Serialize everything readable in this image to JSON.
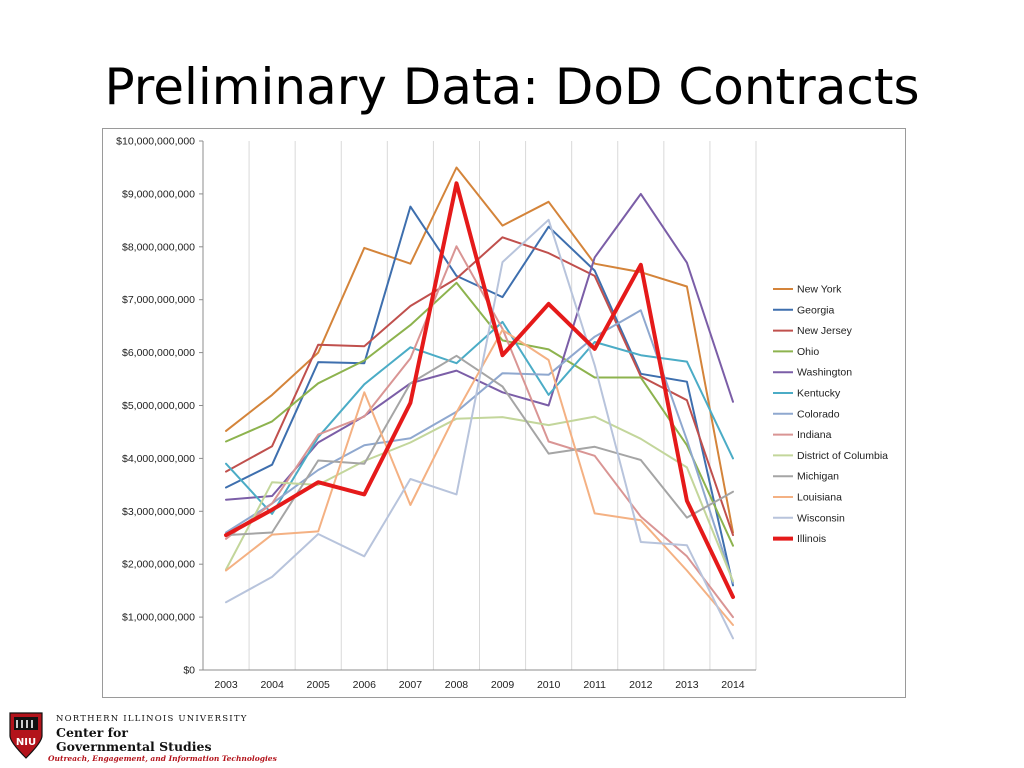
{
  "slide": {
    "title": "Preliminary Data: DoD Contracts"
  },
  "logo": {
    "university": "NORTHERN ILLINOIS UNIVERSITY",
    "center_line1": "Center for",
    "center_line2": "Governmental Studies",
    "tagline": "Outreach, Engagement, and Information Technologies",
    "seal_text": "NIU"
  },
  "chart_data": {
    "type": "line",
    "title": "",
    "xlabel": "",
    "ylabel": "",
    "x": [
      "2003",
      "2004",
      "2005",
      "2006",
      "2007",
      "2008",
      "2009",
      "2010",
      "2011",
      "2012",
      "2013",
      "2014"
    ],
    "ylim": [
      0,
      10000000000
    ],
    "yticks": [
      0,
      1000000000,
      2000000000,
      3000000000,
      4000000000,
      5000000000,
      6000000000,
      7000000000,
      8000000000,
      9000000000,
      10000000000
    ],
    "ytick_labels": [
      "$0",
      "$1,000,000,000",
      "$2,000,000,000",
      "$3,000,000,000",
      "$4,000,000,000",
      "$5,000,000,000",
      "$6,000,000,000",
      "$7,000,000,000",
      "$8,000,000,000",
      "$9,000,000,000",
      "$10,000,000,000"
    ],
    "grid": "vertical",
    "legend_position": "right",
    "series": [
      {
        "name": "New York",
        "color": "#d4843a",
        "values": [
          4520000000,
          5200000000,
          6000000000,
          7980000000,
          7680000000,
          9500000000,
          8400000000,
          8850000000,
          7680000000,
          7520000000,
          7250000000,
          2600000000
        ]
      },
      {
        "name": "Georgia",
        "color": "#3e6fae",
        "values": [
          3450000000,
          3880000000,
          5820000000,
          5800000000,
          8760000000,
          7450000000,
          7050000000,
          8380000000,
          7550000000,
          5600000000,
          5450000000,
          1600000000
        ]
      },
      {
        "name": "New Jersey",
        "color": "#c0504d",
        "values": [
          3750000000,
          4230000000,
          6150000000,
          6120000000,
          6880000000,
          7400000000,
          8180000000,
          7880000000,
          7450000000,
          5550000000,
          5100000000,
          2550000000
        ]
      },
      {
        "name": "Ohio",
        "color": "#8db34e",
        "values": [
          4320000000,
          4700000000,
          5420000000,
          5850000000,
          6520000000,
          7320000000,
          6230000000,
          6060000000,
          5530000000,
          5530000000,
          4250000000,
          2350000000
        ]
      },
      {
        "name": "Washington",
        "color": "#7b5ea7",
        "values": [
          3220000000,
          3290000000,
          4300000000,
          4800000000,
          5420000000,
          5660000000,
          5250000000,
          5000000000,
          7800000000,
          9000000000,
          7700000000,
          5070000000
        ]
      },
      {
        "name": "Kentucky",
        "color": "#4bacc6",
        "values": [
          3900000000,
          2950000000,
          4400000000,
          5400000000,
          6100000000,
          5800000000,
          6580000000,
          5200000000,
          6200000000,
          5950000000,
          5830000000,
          4000000000
        ]
      },
      {
        "name": "Colorado",
        "color": "#8fa8cf",
        "values": [
          2600000000,
          3150000000,
          3780000000,
          4250000000,
          4380000000,
          4880000000,
          5610000000,
          5580000000,
          6300000000,
          6800000000,
          4350000000,
          1650000000
        ]
      },
      {
        "name": "Indiana",
        "color": "#d99594",
        "values": [
          2480000000,
          3150000000,
          4450000000,
          4790000000,
          5890000000,
          8010000000,
          6450000000,
          4320000000,
          4050000000,
          2900000000,
          2150000000,
          1000000000
        ]
      },
      {
        "name": "District of Columbia",
        "color": "#c3d69b",
        "values": [
          1900000000,
          3550000000,
          3500000000,
          3950000000,
          4300000000,
          4750000000,
          4780000000,
          4630000000,
          4790000000,
          4370000000,
          3830000000,
          1680000000
        ]
      },
      {
        "name": "Michigan",
        "color": "#a5a5a5",
        "values": [
          2550000000,
          2600000000,
          3960000000,
          3900000000,
          5420000000,
          5940000000,
          5360000000,
          4090000000,
          4220000000,
          3970000000,
          2880000000,
          3370000000
        ]
      },
      {
        "name": "Louisiana",
        "color": "#f4b183",
        "values": [
          1880000000,
          2560000000,
          2620000000,
          5250000000,
          3120000000,
          4870000000,
          6430000000,
          5860000000,
          2960000000,
          2830000000,
          1880000000,
          850000000
        ]
      },
      {
        "name": "Wisconsin",
        "color": "#b8c4dc",
        "values": [
          1280000000,
          1760000000,
          2570000000,
          2150000000,
          3610000000,
          3320000000,
          7710000000,
          8510000000,
          5760000000,
          2420000000,
          2360000000,
          600000000
        ]
      },
      {
        "name": "Illinois",
        "color": "#e51a1a",
        "values": [
          2550000000,
          3030000000,
          3550000000,
          3320000000,
          5050000000,
          9200000000,
          5950000000,
          6920000000,
          6070000000,
          7660000000,
          3200000000,
          1380000000
        ]
      }
    ]
  }
}
